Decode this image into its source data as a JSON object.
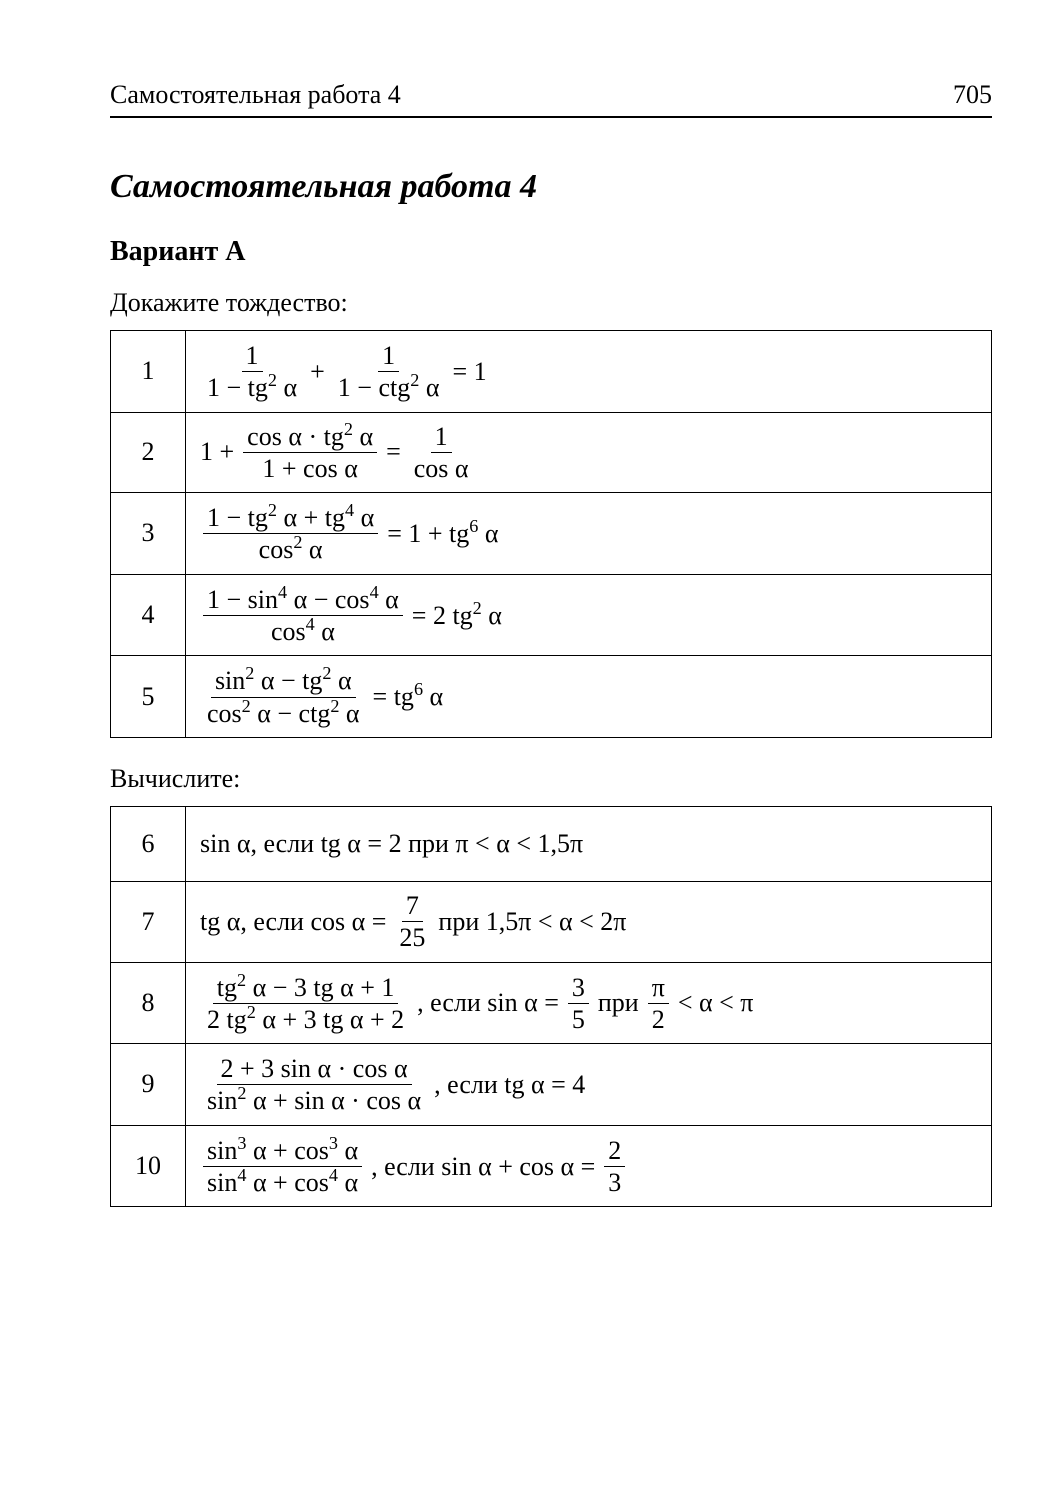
{
  "header": {
    "running_title": "Самостоятельная работа 4",
    "page_number": "705"
  },
  "section_title": "Самостоятельная работа 4",
  "variant": "Вариант А",
  "instr1": "Докажите тождество:",
  "instr2": "Вычислите:",
  "t1": {
    "r1": {
      "n": "1",
      "f1n": "1",
      "f1d_a": "1 − tg",
      "f1d_b": " α",
      "plus": " + ",
      "f2n": "1",
      "f2d_a": "1 − ctg",
      "f2d_b": " α",
      "eq": " = 1"
    },
    "r2": {
      "n": "2",
      "lead": "1 + ",
      "f1n_a": "cos α · tg",
      "f1n_b": " α",
      "f1d": "1 + cos α",
      "eq": " = ",
      "f2n": "1",
      "f2d": "cos α"
    },
    "r3": {
      "n": "3",
      "f1n_a": "1 − tg",
      "f1n_b": " α + tg",
      "f1n_c": " α",
      "f1d_a": "cos",
      "f1d_b": " α",
      "eq_a": " = 1 + tg",
      "eq_b": " α"
    },
    "r4": {
      "n": "4",
      "f1n_a": "1 − sin",
      "f1n_b": " α − cos",
      "f1n_c": " α",
      "f1d_a": "cos",
      "f1d_b": " α",
      "eq_a": " = 2 tg",
      "eq_b": " α"
    },
    "r5": {
      "n": "5",
      "f1n_a": "sin",
      "f1n_b": " α − tg",
      "f1n_c": " α",
      "f1d_a": "cos",
      "f1d_b": " α − ctg",
      "f1d_c": " α",
      "eq_a": " = tg",
      "eq_b": " α"
    }
  },
  "t2": {
    "r6": {
      "n": "6",
      "txt": "sin α, если tg α = 2 при π < α < 1,5π"
    },
    "r7": {
      "n": "7",
      "lead": "tg α, если cos α = ",
      "fn": "7",
      "fd": "25",
      "tail": " при 1,5π < α < 2π"
    },
    "r8": {
      "n": "8",
      "f1n_a": "tg",
      "f1n_b": " α − 3 tg α + 1",
      "f1d_a": "2 tg",
      "f1d_b": " α + 3 tg α + 2",
      "mid": ", если sin α = ",
      "f2n": "3",
      "f2d": "5",
      "mid2": " при ",
      "f3n": "π",
      "f3d": "2",
      "tail": " < α < π"
    },
    "r9": {
      "n": "9",
      "f1n": "2 + 3 sin α · cos α",
      "f1d_a": "sin",
      "f1d_b": " α + sin α · cos α",
      "tail": ", если tg α = 4"
    },
    "r10": {
      "n": "10",
      "f1n_a": "sin",
      "f1n_b": " α + cos",
      "f1n_c": " α",
      "f1d_a": "sin",
      "f1d_b": " α + cos",
      "f1d_c": " α",
      "mid": ", если sin α + cos α = ",
      "f2n": "2",
      "f2d": "3"
    }
  }
}
